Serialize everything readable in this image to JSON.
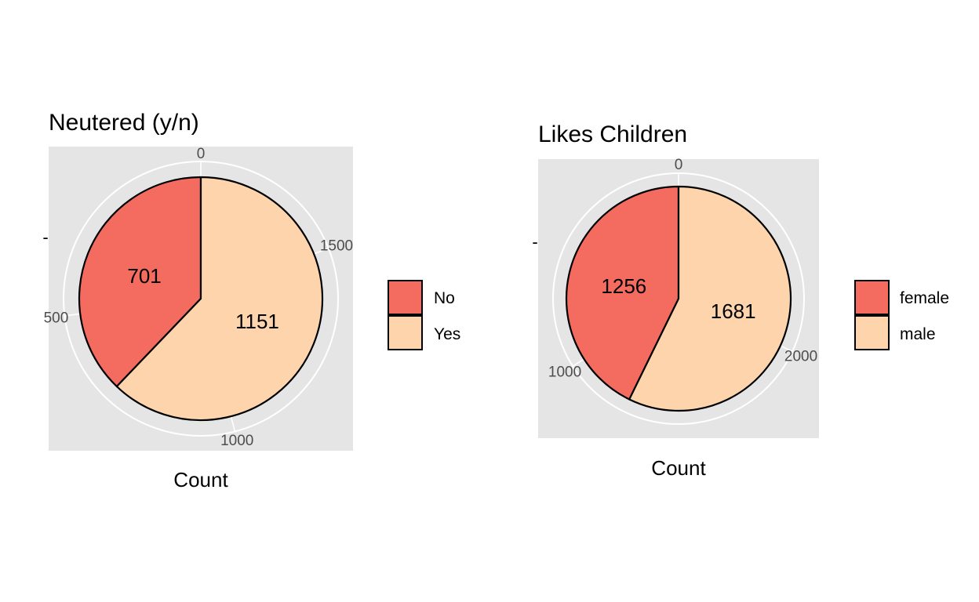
{
  "colors": {
    "panel_bg": "#e5e5e5",
    "grid": "#ffffff",
    "slice_first": "#f46b60",
    "slice_second": "#fdd4ab",
    "outline": "#000000",
    "tick_text": "#4d4d4d",
    "text": "#000000"
  },
  "chart_data": [
    {
      "type": "pie",
      "title": "Neutered (y/n)",
      "xlabel": "Count",
      "ylabel": "-",
      "categories": [
        "No",
        "Yes"
      ],
      "values": [
        701,
        1151
      ],
      "data_labels": [
        "701",
        "1151"
      ],
      "tick_values": [
        0,
        500,
        1000,
        1500
      ],
      "tick_labels": [
        "0",
        "500",
        "1000",
        "1500"
      ],
      "legend": {
        "placement": "right",
        "entries": [
          "No",
          "Yes"
        ]
      },
      "grid": true
    },
    {
      "type": "pie",
      "title": "Likes Children",
      "xlabel": "Count",
      "ylabel": "-",
      "categories": [
        "female",
        "male"
      ],
      "values": [
        1256,
        1681
      ],
      "data_labels": [
        "1256",
        "1681"
      ],
      "tick_values": [
        0,
        1000,
        2000
      ],
      "tick_labels": [
        "0",
        "1000",
        "2000"
      ],
      "legend": {
        "placement": "right",
        "entries": [
          "female",
          "male"
        ]
      },
      "grid": true
    }
  ]
}
